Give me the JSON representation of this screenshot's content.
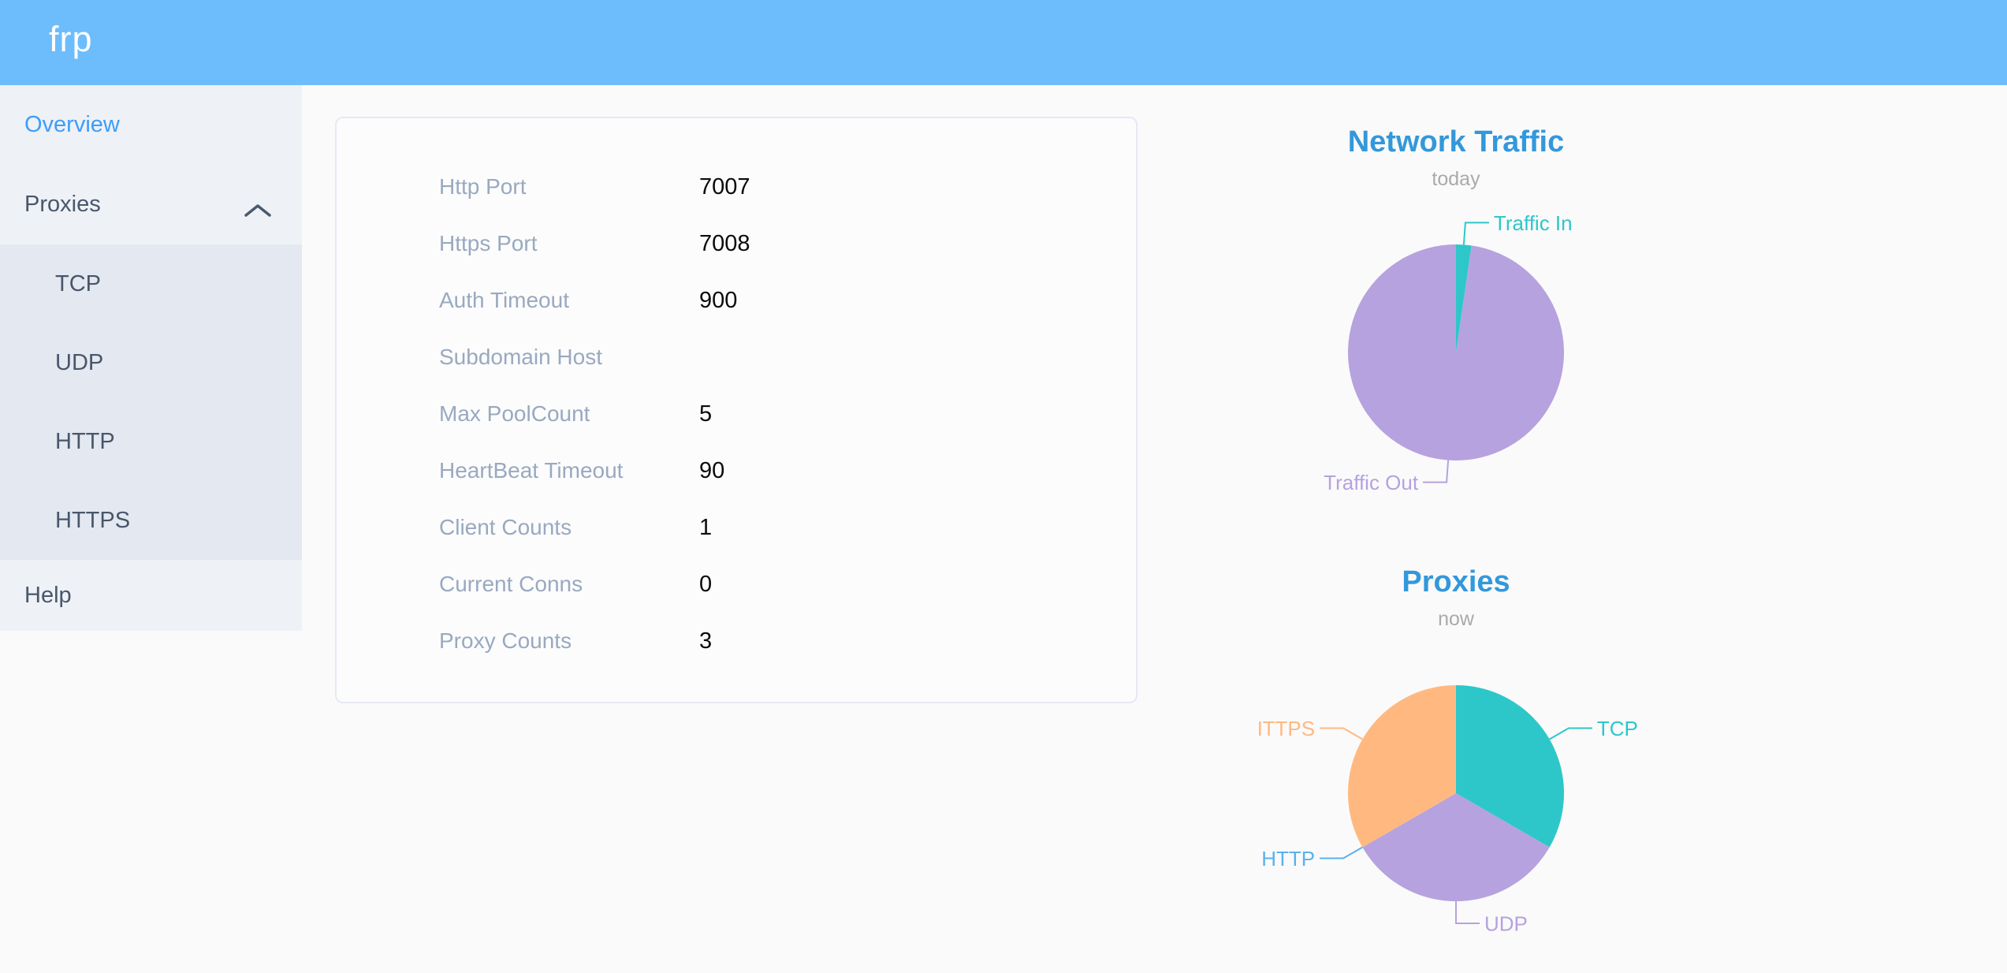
{
  "header": {
    "logo": "frp"
  },
  "theme": {
    "header_bg": "#6dbdfc",
    "sidebar_bg": "#eef1f6",
    "submenu_bg": "#e4e8f1",
    "sidebar_text": "#48576a",
    "active_link": "#3e9df8",
    "chart_title_color": "#3398db",
    "label_gray": "#99a9bf"
  },
  "sidebar": {
    "items": [
      {
        "label": "Overview",
        "active": true
      },
      {
        "label": "Proxies",
        "expanded": true,
        "children": [
          {
            "label": "TCP"
          },
          {
            "label": "UDP"
          },
          {
            "label": "HTTP"
          },
          {
            "label": "HTTPS"
          }
        ]
      },
      {
        "label": "Help"
      }
    ]
  },
  "server_info": {
    "rows": [
      {
        "label": "Http Port",
        "value": "7007"
      },
      {
        "label": "Https Port",
        "value": "7008"
      },
      {
        "label": "Auth Timeout",
        "value": "900"
      },
      {
        "label": "Subdomain Host",
        "value": ""
      },
      {
        "label": "Max PoolCount",
        "value": "5"
      },
      {
        "label": "HeartBeat Timeout",
        "value": "90"
      },
      {
        "label": "Client Counts",
        "value": "1"
      },
      {
        "label": "Current Conns",
        "value": "0"
      },
      {
        "label": "Proxy Counts",
        "value": "3"
      }
    ]
  },
  "chart_data": [
    {
      "id": "network-traffic",
      "type": "pie",
      "title": "Network Traffic",
      "subtitle": "today",
      "values_unit": "percent-estimated",
      "legend_position": "callout-labels",
      "series": [
        {
          "name": "Traffic In",
          "value": 2.3,
          "color": "#2ec7c9"
        },
        {
          "name": "Traffic Out",
          "value": 97.7,
          "color": "#b6a2de"
        }
      ]
    },
    {
      "id": "proxies",
      "type": "pie",
      "title": "Proxies",
      "subtitle": "now",
      "values_unit": "count",
      "legend_position": "callout-labels",
      "series": [
        {
          "name": "TCP",
          "value": 1,
          "color": "#2ec7c9"
        },
        {
          "name": "UDP",
          "value": 1,
          "color": "#b6a2de"
        },
        {
          "name": "HTTP",
          "value": 0,
          "color": "#5ab1ef"
        },
        {
          "name": "HTTPS",
          "value": 1,
          "color": "#ffb980"
        }
      ]
    }
  ]
}
